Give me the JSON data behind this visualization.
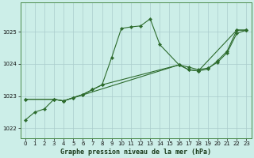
{
  "title": "Graphe pression niveau de la mer (hPa)",
  "bg_color": "#cceee8",
  "grid_color": "#aacccc",
  "line_color": "#2d6b2d",
  "xlim": [
    -0.5,
    23.5
  ],
  "ylim": [
    1021.7,
    1025.9
  ],
  "xticks": [
    0,
    1,
    2,
    3,
    4,
    5,
    6,
    7,
    8,
    9,
    10,
    11,
    12,
    13,
    14,
    15,
    16,
    17,
    18,
    19,
    20,
    21,
    22,
    23
  ],
  "yticks": [
    1022,
    1023,
    1024,
    1025
  ],
  "line1_x": [
    0,
    1,
    2,
    3,
    4,
    5,
    6,
    7,
    8,
    9,
    10,
    11,
    12,
    13,
    14,
    16,
    17,
    18,
    19,
    20,
    21,
    22,
    23
  ],
  "line1_y": [
    1022.25,
    1022.5,
    1022.6,
    1022.9,
    1022.85,
    1022.95,
    1023.05,
    1023.2,
    1023.35,
    1024.2,
    1025.1,
    1025.15,
    1025.18,
    1025.4,
    1024.6,
    1023.97,
    1023.9,
    1023.82,
    1023.87,
    1024.05,
    1024.35,
    1024.95,
    1025.05
  ],
  "line2_x": [
    0,
    3,
    4,
    5,
    6,
    7,
    8,
    16,
    17,
    18,
    19,
    20,
    21,
    22,
    23
  ],
  "line2_y": [
    1022.9,
    1022.9,
    1022.85,
    1022.95,
    1023.05,
    1023.2,
    1023.35,
    1023.97,
    1023.82,
    1023.78,
    1023.84,
    1024.1,
    1024.4,
    1025.05,
    1025.05
  ],
  "line3_x": [
    0,
    3,
    4,
    16,
    17,
    18,
    22,
    23
  ],
  "line3_y": [
    1022.9,
    1022.9,
    1022.85,
    1023.97,
    1023.82,
    1023.78,
    1025.05,
    1025.05
  ],
  "xlabel_fontsize": 6,
  "tick_fontsize": 5
}
